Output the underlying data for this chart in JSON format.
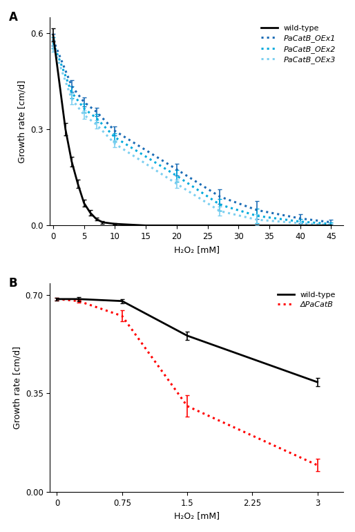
{
  "panel_A": {
    "title": "A",
    "xlabel": "H₂O₂ [mM]",
    "ylabel": "Growth rate [cm/d]",
    "ylim": [
      0,
      0.65
    ],
    "xlim": [
      -0.5,
      47
    ],
    "yticks": [
      0,
      0.3,
      0.6
    ],
    "xticks": [
      0,
      5,
      10,
      15,
      20,
      25,
      30,
      35,
      40,
      45
    ],
    "wild_type": {
      "x": [
        0,
        2,
        3,
        4,
        5,
        6,
        7,
        8,
        10,
        15,
        20,
        25,
        30,
        35,
        40,
        45
      ],
      "y": [
        0.595,
        0.3,
        0.2,
        0.13,
        0.07,
        0.04,
        0.02,
        0.01,
        0.005,
        0.0,
        0.0,
        0.0,
        0.0,
        0.0,
        0.0,
        0.0
      ],
      "yerr": [
        0.02,
        0.02,
        0.015,
        0.012,
        0.01,
        0.008,
        0.005,
        0.004,
        0.003,
        0.0,
        0.0,
        0.0,
        0.0,
        0.0,
        0.0,
        0.0
      ],
      "color": "#000000",
      "linestyle": "solid",
      "linewidth": 2.0
    },
    "OEx1": {
      "x": [
        0,
        3,
        5,
        7,
        10,
        20,
        27,
        33,
        40,
        45
      ],
      "y": [
        0.58,
        0.435,
        0.385,
        0.355,
        0.295,
        0.175,
        0.09,
        0.048,
        0.022,
        0.01
      ],
      "yerr": [
        0.018,
        0.018,
        0.014,
        0.013,
        0.013,
        0.018,
        0.022,
        0.028,
        0.014,
        0.009
      ],
      "color": "#1B6CB5",
      "linestyle": "dotted",
      "linewidth": 2.2
    },
    "OEx2": {
      "x": [
        0,
        3,
        5,
        7,
        10,
        20,
        27,
        33,
        40,
        45
      ],
      "y": [
        0.57,
        0.415,
        0.365,
        0.335,
        0.275,
        0.155,
        0.065,
        0.03,
        0.012,
        0.005
      ],
      "yerr": [
        0.018,
        0.018,
        0.014,
        0.013,
        0.013,
        0.018,
        0.018,
        0.022,
        0.009,
        0.004
      ],
      "color": "#00AADD",
      "linestyle": "dotted",
      "linewidth": 2.2
    },
    "OEx3": {
      "x": [
        0,
        3,
        5,
        7,
        10,
        20,
        27,
        33,
        40,
        45
      ],
      "y": [
        0.56,
        0.395,
        0.345,
        0.315,
        0.255,
        0.13,
        0.045,
        0.018,
        0.007,
        0.002
      ],
      "yerr": [
        0.018,
        0.018,
        0.013,
        0.013,
        0.01,
        0.013,
        0.013,
        0.018,
        0.007,
        0.003
      ],
      "color": "#7DCFF0",
      "linestyle": "dotted",
      "linewidth": 2.2
    },
    "legend": {
      "wild_type": "wild-type",
      "OEx1": "PaCatB_OEx1",
      "OEx2": "PaCatB_OEx2",
      "OEx3": "PaCatB_OEx3"
    }
  },
  "panel_B": {
    "title": "B",
    "xlabel": "H₂O₂ [mM]",
    "ylabel": "Growth rate [cm/d]",
    "ylim": [
      0,
      0.74
    ],
    "xlim": [
      -0.08,
      3.3
    ],
    "yticks": [
      0,
      0.35,
      0.7
    ],
    "xticks": [
      0,
      0.75,
      1.5,
      2.25,
      3.0
    ],
    "xtick_labels": [
      "0",
      "0.75",
      "1.5",
      "2.25",
      "3"
    ],
    "wild_type": {
      "x": [
        0,
        0.25,
        0.75,
        1.5,
        3.0
      ],
      "y": [
        0.685,
        0.685,
        0.678,
        0.555,
        0.39
      ],
      "yerr": [
        0.005,
        0.007,
        0.007,
        0.015,
        0.014
      ],
      "color": "#000000",
      "linestyle": "solid",
      "linewidth": 2.0
    },
    "delta": {
      "x": [
        0,
        0.25,
        0.75,
        1.5,
        3.0
      ],
      "y": [
        0.685,
        0.678,
        0.625,
        0.305,
        0.095
      ],
      "yerr": [
        0.005,
        0.005,
        0.02,
        0.038,
        0.022
      ],
      "color": "#FF0000",
      "linestyle": "dotted",
      "linewidth": 2.2
    },
    "legend": {
      "wild_type": "wild-type",
      "delta": "ΔPaCatB"
    }
  }
}
